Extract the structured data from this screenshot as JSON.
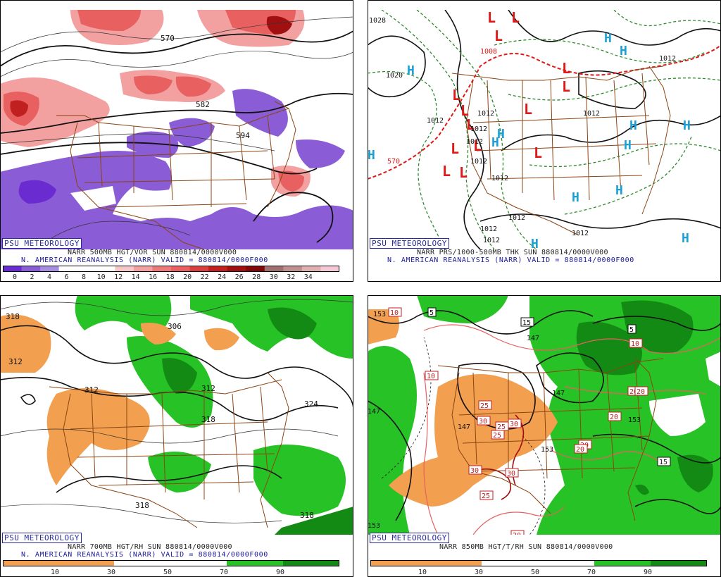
{
  "colors": {
    "vort_neg": "#8a5cd6",
    "vort_neg_dark": "#6a2bd1",
    "vort_pos_light": "#f2a0a0",
    "vort_pos": "#e86060",
    "vort_pos_dark": "#c02020",
    "rh_dry": "#f2a050",
    "rh_moist_light": "#26c226",
    "rh_moist_dark": "#138a13",
    "border": "#8b4513",
    "psu_blue": "#2a2aa0",
    "high_blue": "#1aa0d6",
    "low_red": "#e01818",
    "thickness_green": "#2b8a2b"
  },
  "panels": {
    "vor": {
      "psu": "PSU METEOROLOGY",
      "caption1": "NARR 500MB HGT/VOR SUN 880814/0000V000",
      "caption2": "N. AMERICAN REANALYSIS (NARR) VALID = 880814/0000F000",
      "contour_labels": [
        "570",
        "582",
        "594"
      ],
      "scale_ticks": [
        "0",
        "2",
        "4",
        "6",
        "8",
        "10",
        "12",
        "14",
        "16",
        "18",
        "20",
        "22",
        "24",
        "26",
        "28",
        "30",
        "32",
        "34"
      ],
      "scale_colors": [
        "#6a2bd1",
        "#8a5cd6",
        "#a88ee0",
        "#ffffff",
        "#ffffff",
        "#ffffff",
        "#f7c8c8",
        "#f2a0a0",
        "#ec7a7a",
        "#e86060",
        "#d84040",
        "#c02020",
        "#a01010",
        "#800808",
        "#a07070",
        "#c09090",
        "#e0b0b0",
        "#f5c8d8"
      ]
    },
    "prs": {
      "psu": "PSU METEOROLOGY",
      "caption1": "NARR PRS/1000-500MB THK SUN 880814/0000V000",
      "caption2": "N. AMERICAN REANALYSIS (NARR) VALID = 880814/0000F000",
      "isobar_labels": [
        "1020",
        "1028",
        "1012",
        "1012",
        "1012",
        "1012",
        "1012",
        "1012",
        "1012",
        "1012",
        "1012",
        "1012",
        "1012"
      ],
      "thickness_labels": [
        "570",
        "1008",
        "1012"
      ],
      "highs": [
        "H",
        "H",
        "H",
        "H",
        "H",
        "H",
        "H",
        "H",
        "H",
        "H",
        "H",
        "H",
        "H"
      ],
      "lows": [
        "L",
        "L",
        "L",
        "L",
        "L",
        "L",
        "L",
        "L",
        "L",
        "L",
        "L",
        "L",
        "L",
        "L"
      ]
    },
    "rh700": {
      "psu": "PSU METEOROLOGY",
      "caption1": "NARR 700MB HGT/RH SUN 880814/0000V000",
      "caption2": "N. AMERICAN REANALYSIS (NARR) VALID = 880814/0000F000",
      "contour_labels": [
        "318",
        "306",
        "312",
        "312",
        "312",
        "318",
        "324",
        "318",
        "318"
      ],
      "scale_ticks": [
        "10",
        "30",
        "50",
        "70",
        "90"
      ]
    },
    "rh850": {
      "caption1": "NARR 850MB HGT/T/RH SUN 880814/0000V000",
      "psu": "PSU METEOROLOGY",
      "height_labels": [
        "153",
        "147",
        "147",
        "147",
        "147",
        "153",
        "153",
        "153"
      ],
      "temp_labels": [
        "10",
        "5",
        "15",
        "5",
        "10",
        "10",
        "20",
        "20",
        "20",
        "20",
        "25",
        "30",
        "25",
        "30",
        "25",
        "30",
        "30",
        "25",
        "20",
        "15",
        "20"
      ],
      "scale_ticks": [
        "10",
        "30",
        "50",
        "70",
        "90"
      ]
    }
  }
}
